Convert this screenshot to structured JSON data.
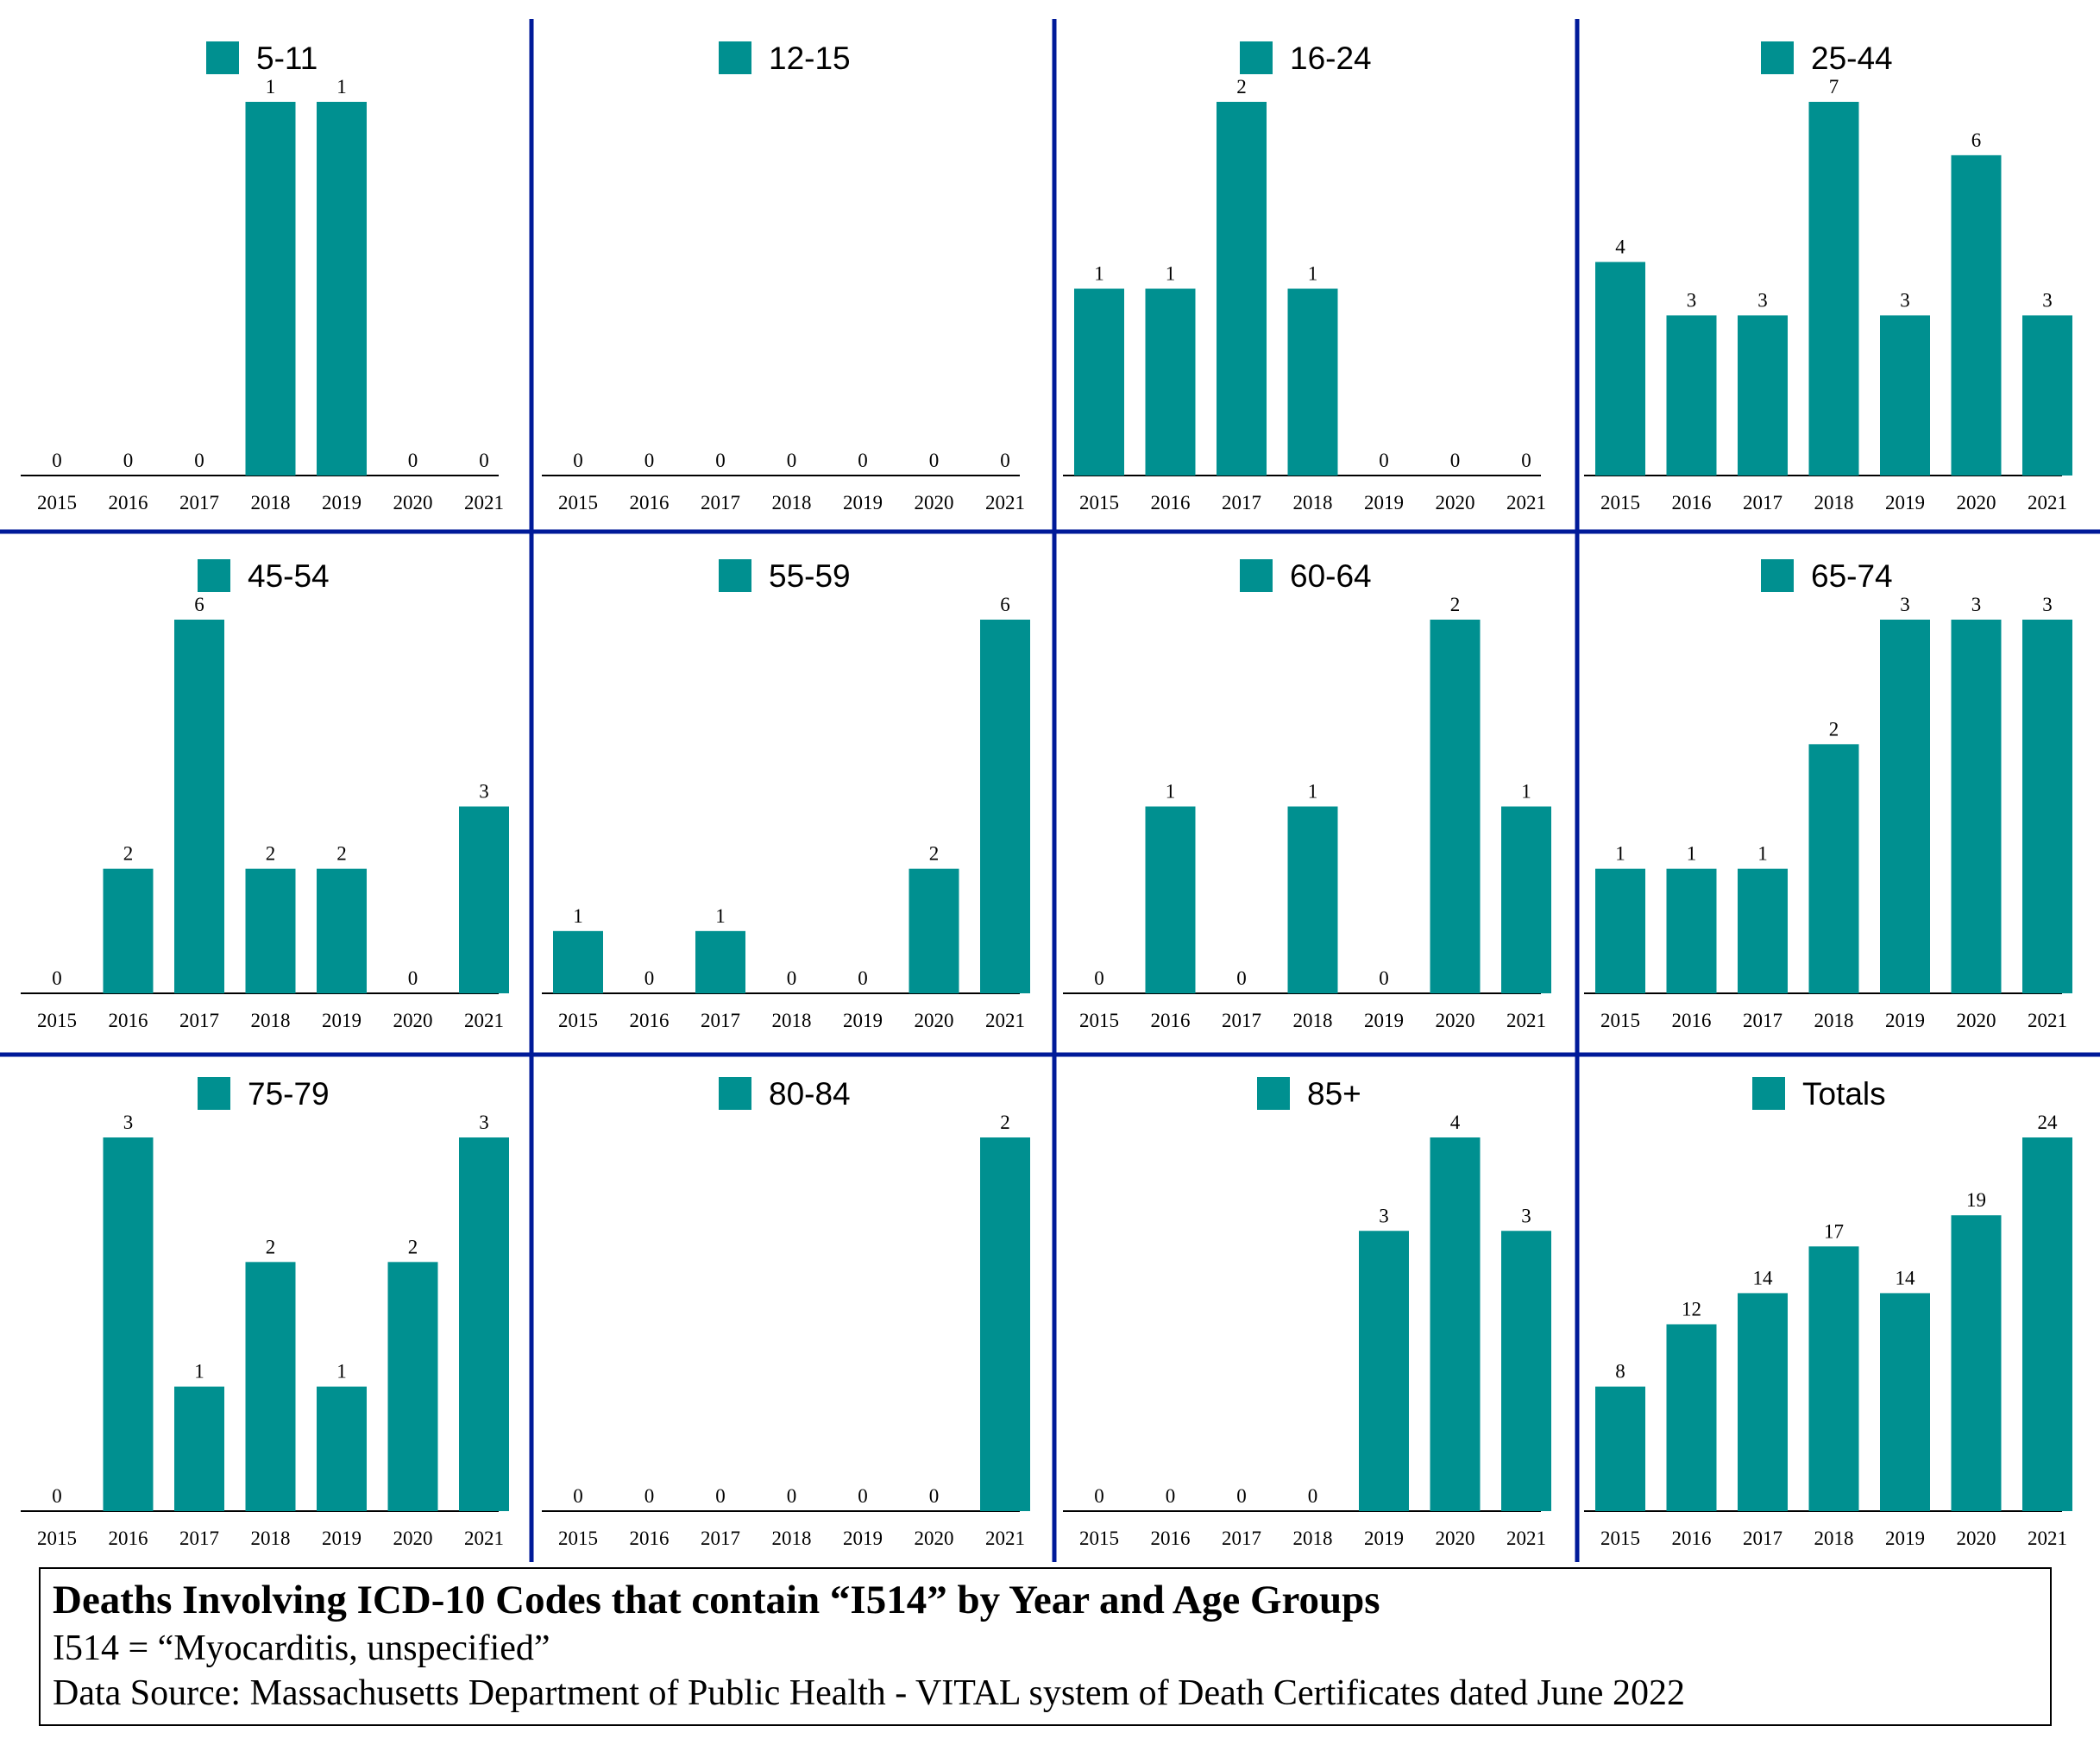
{
  "colors": {
    "bar": "#009090",
    "divider": "#001a99",
    "axis": "#000000"
  },
  "chart_data": [
    {
      "type": "bar",
      "legend": "5-11",
      "categories": [
        "2015",
        "2016",
        "2017",
        "2018",
        "2019",
        "2020",
        "2021"
      ],
      "values": [
        0,
        0,
        0,
        1,
        1,
        0,
        0
      ],
      "ylim": [
        0,
        1
      ]
    },
    {
      "type": "bar",
      "legend": "12-15",
      "categories": [
        "2015",
        "2016",
        "2017",
        "2018",
        "2019",
        "2020",
        "2021"
      ],
      "values": [
        0,
        0,
        0,
        0,
        0,
        0,
        0
      ],
      "ylim": [
        0,
        1
      ]
    },
    {
      "type": "bar",
      "legend": "16-24",
      "categories": [
        "2015",
        "2016",
        "2017",
        "2018",
        "2019",
        "2020",
        "2021"
      ],
      "values": [
        1,
        1,
        2,
        1,
        0,
        0,
        0
      ],
      "ylim": [
        0,
        2
      ]
    },
    {
      "type": "bar",
      "legend": "25-44",
      "categories": [
        "2015",
        "2016",
        "2017",
        "2018",
        "2019",
        "2020",
        "2021"
      ],
      "values": [
        4,
        3,
        3,
        7,
        3,
        6,
        3
      ],
      "ylim": [
        0,
        7
      ]
    },
    {
      "type": "bar",
      "legend": "45-54",
      "categories": [
        "2015",
        "2016",
        "2017",
        "2018",
        "2019",
        "2020",
        "2021"
      ],
      "values": [
        0,
        2,
        6,
        2,
        2,
        0,
        3
      ],
      "ylim": [
        0,
        6
      ]
    },
    {
      "type": "bar",
      "legend": "55-59",
      "categories": [
        "2015",
        "2016",
        "2017",
        "2018",
        "2019",
        "2020",
        "2021"
      ],
      "values": [
        1,
        0,
        1,
        0,
        0,
        2,
        6
      ],
      "ylim": [
        0,
        6
      ]
    },
    {
      "type": "bar",
      "legend": "60-64",
      "categories": [
        "2015",
        "2016",
        "2017",
        "2018",
        "2019",
        "2020",
        "2021"
      ],
      "values": [
        0,
        1,
        0,
        1,
        0,
        2,
        1
      ],
      "ylim": [
        0,
        2
      ]
    },
    {
      "type": "bar",
      "legend": "65-74",
      "categories": [
        "2015",
        "2016",
        "2017",
        "2018",
        "2019",
        "2020",
        "2021"
      ],
      "values": [
        1,
        1,
        1,
        2,
        3,
        3,
        3
      ],
      "ylim": [
        0,
        3
      ]
    },
    {
      "type": "bar",
      "legend": "75-79",
      "categories": [
        "2015",
        "2016",
        "2017",
        "2018",
        "2019",
        "2020",
        "2021"
      ],
      "values": [
        0,
        3,
        1,
        2,
        1,
        2,
        3
      ],
      "ylim": [
        0,
        3
      ]
    },
    {
      "type": "bar",
      "legend": "80-84",
      "categories": [
        "2015",
        "2016",
        "2017",
        "2018",
        "2019",
        "2020",
        "2021"
      ],
      "values": [
        0,
        0,
        0,
        0,
        0,
        0,
        2
      ],
      "ylim": [
        0,
        2
      ]
    },
    {
      "type": "bar",
      "legend": "85+",
      "categories": [
        "2015",
        "2016",
        "2017",
        "2018",
        "2019",
        "2020",
        "2021"
      ],
      "values": [
        0,
        0,
        0,
        0,
        3,
        4,
        3
      ],
      "ylim": [
        0,
        4
      ]
    },
    {
      "type": "bar",
      "legend": "Totals",
      "categories": [
        "2015",
        "2016",
        "2017",
        "2018",
        "2019",
        "2020",
        "2021"
      ],
      "values": [
        8,
        12,
        14,
        17,
        14,
        19,
        24
      ],
      "ylim": [
        0,
        24
      ]
    }
  ],
  "caption": {
    "title": "Deaths Involving ICD-10 Codes that contain “I514” by Year and Age Groups",
    "line1": "I514 = “Myocarditis, unspecified”",
    "line2": "Data Source:  Massachusetts Department of Public Health - VITAL system of Death Certificates dated June 2022"
  }
}
